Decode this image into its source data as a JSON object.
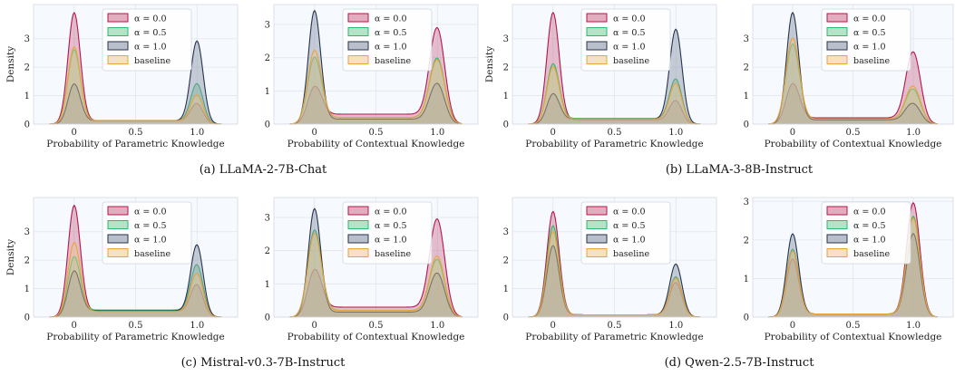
{
  "figure": {
    "captions": [
      "(a) LLaMA-2-7B-Chat",
      "(b) LLaMA-3-8B-Instruct",
      "(c) Mistral-v0.3-7B-Instruct",
      "(d) Qwen-2.5-7B-Instruct"
    ],
    "legend": [
      "α = 0.0",
      "α = 0.5",
      "α = 1.0",
      "baseline"
    ],
    "colors": {
      "series": [
        "#b5174b",
        "#2fb86b",
        "#27344d",
        "#e8a33d"
      ],
      "fills": [
        "#c96a8b",
        "#76cc99",
        "#7f8ca3",
        "#f1c98f"
      ],
      "panel_bg": "#f6f9fd",
      "grid": "#e1e6ee"
    }
  },
  "chart_data": [
    {
      "type": "area",
      "panel": "(a) LLaMA-2-7B-Chat",
      "xlabel": "Probability of Parametric Knowledge",
      "ylabel": "Density",
      "xlim": [
        -0.33,
        1.33
      ],
      "ylim": [
        0,
        4.2
      ],
      "xticks": [
        "0",
        "0.5",
        "1.0"
      ],
      "yticks": [
        "0",
        "1",
        "2",
        "3"
      ],
      "series": [
        {
          "name": "α = 0.0",
          "peaks": [
            {
              "x": 0,
              "h": 3.9,
              "w": 0.05
            },
            {
              "x": 1,
              "h": 0.7,
              "w": 0.05
            }
          ],
          "base": 0.12
        },
        {
          "name": "α = 0.5",
          "peaks": [
            {
              "x": 0,
              "h": 2.6,
              "w": 0.05
            },
            {
              "x": 1,
              "h": 1.4,
              "w": 0.05
            }
          ],
          "base": 0.12
        },
        {
          "name": "α = 1.0",
          "peaks": [
            {
              "x": 0,
              "h": 1.4,
              "w": 0.05
            },
            {
              "x": 1,
              "h": 2.9,
              "w": 0.05
            }
          ],
          "base": 0.12
        },
        {
          "name": "baseline",
          "peaks": [
            {
              "x": 0,
              "h": 2.7,
              "w": 0.05
            },
            {
              "x": 1,
              "h": 1.0,
              "w": 0.05
            }
          ],
          "base": 0.12
        }
      ]
    },
    {
      "type": "area",
      "panel": "(a) LLaMA-2-7B-Chat",
      "xlabel": "Probability of Contextual Knowledge",
      "ylabel": "",
      "xlim": [
        -0.33,
        1.33
      ],
      "ylim": [
        0,
        3.6
      ],
      "xticks": [
        "0",
        "0.5",
        "1.0"
      ],
      "yticks": [
        "0",
        "1",
        "2",
        "3"
      ],
      "series": [
        {
          "name": "α = 0.0",
          "peaks": [
            {
              "x": 0,
              "h": 1.1,
              "w": 0.055
            },
            {
              "x": 1,
              "h": 2.85,
              "w": 0.06
            }
          ],
          "base": 0.3
        },
        {
          "name": "α = 0.5",
          "peaks": [
            {
              "x": 0,
              "h": 2.0,
              "w": 0.055
            },
            {
              "x": 1,
              "h": 1.95,
              "w": 0.06
            }
          ],
          "base": 0.2
        },
        {
          "name": "α = 1.0",
          "peaks": [
            {
              "x": 0,
              "h": 3.4,
              "w": 0.05
            },
            {
              "x": 1,
              "h": 1.2,
              "w": 0.06
            }
          ],
          "base": 0.15
        },
        {
          "name": "baseline",
          "peaks": [
            {
              "x": 0,
              "h": 2.2,
              "w": 0.055
            },
            {
              "x": 1,
              "h": 1.9,
              "w": 0.06
            }
          ],
          "base": 0.2
        }
      ]
    },
    {
      "type": "area",
      "panel": "(b) LLaMA-3-8B-Instruct",
      "xlabel": "Probability of Parametric Knowledge",
      "ylabel": "Density",
      "xlim": [
        -0.33,
        1.33
      ],
      "ylim": [
        0,
        4.2
      ],
      "xticks": [
        "0",
        "0.5",
        "1.0"
      ],
      "yticks": [
        "0",
        "1",
        "2",
        "3"
      ],
      "series": [
        {
          "name": "α = 0.0",
          "peaks": [
            {
              "x": 0,
              "h": 3.9,
              "w": 0.05
            },
            {
              "x": 1,
              "h": 0.8,
              "w": 0.05
            }
          ],
          "base": 0.15
        },
        {
          "name": "α = 0.5",
          "peaks": [
            {
              "x": 0,
              "h": 2.1,
              "w": 0.05
            },
            {
              "x": 1,
              "h": 1.55,
              "w": 0.05
            }
          ],
          "base": 0.2
        },
        {
          "name": "α = 1.0",
          "peaks": [
            {
              "x": 0,
              "h": 1.05,
              "w": 0.05
            },
            {
              "x": 1,
              "h": 3.3,
              "w": 0.05
            }
          ],
          "base": 0.18
        },
        {
          "name": "baseline",
          "peaks": [
            {
              "x": 0,
              "h": 2.0,
              "w": 0.05
            },
            {
              "x": 1,
              "h": 1.4,
              "w": 0.05
            }
          ],
          "base": 0.18
        }
      ]
    },
    {
      "type": "area",
      "panel": "(b) LLaMA-3-8B-Instruct",
      "xlabel": "Probability of Contextual Knowledge",
      "ylabel": "",
      "xlim": [
        -0.33,
        1.33
      ],
      "ylim": [
        0,
        4.2
      ],
      "xticks": [
        "0",
        "0.5",
        "1.0"
      ],
      "yticks": [
        "0",
        "1",
        "2",
        "3"
      ],
      "series": [
        {
          "name": "α = 0.0",
          "peaks": [
            {
              "x": 0,
              "h": 1.4,
              "w": 0.055
            },
            {
              "x": 1,
              "h": 2.5,
              "w": 0.06
            }
          ],
          "base": 0.22
        },
        {
          "name": "α = 0.5",
          "peaks": [
            {
              "x": 0,
              "h": 2.8,
              "w": 0.055
            },
            {
              "x": 1,
              "h": 1.2,
              "w": 0.06
            }
          ],
          "base": 0.18
        },
        {
          "name": "α = 1.0",
          "peaks": [
            {
              "x": 0,
              "h": 3.9,
              "w": 0.05
            },
            {
              "x": 1,
              "h": 0.7,
              "w": 0.06
            }
          ],
          "base": 0.15
        },
        {
          "name": "baseline",
          "peaks": [
            {
              "x": 0,
              "h": 3.0,
              "w": 0.055
            },
            {
              "x": 1,
              "h": 1.3,
              "w": 0.06
            }
          ],
          "base": 0.18
        }
      ]
    },
    {
      "type": "area",
      "panel": "(c) Mistral-v0.3-7B-Instruct",
      "xlabel": "Probability of Parametric Knowledge",
      "ylabel": "Density",
      "xlim": [
        -0.33,
        1.33
      ],
      "ylim": [
        0,
        4.2
      ],
      "xticks": [
        "0",
        "0.5",
        "1.0"
      ],
      "yticks": [
        "0",
        "1",
        "2",
        "3"
      ],
      "series": [
        {
          "name": "α = 0.0",
          "peaks": [
            {
              "x": 0,
              "h": 3.9,
              "w": 0.05
            },
            {
              "x": 1,
              "h": 1.1,
              "w": 0.05
            }
          ],
          "base": 0.2
        },
        {
          "name": "α = 0.5",
          "peaks": [
            {
              "x": 0,
              "h": 2.1,
              "w": 0.05
            },
            {
              "x": 1,
              "h": 1.8,
              "w": 0.05
            }
          ],
          "base": 0.25
        },
        {
          "name": "α = 1.0",
          "peaks": [
            {
              "x": 0,
              "h": 1.6,
              "w": 0.05
            },
            {
              "x": 1,
              "h": 2.5,
              "w": 0.05
            }
          ],
          "base": 0.22
        },
        {
          "name": "baseline",
          "peaks": [
            {
              "x": 0,
              "h": 2.6,
              "w": 0.05
            },
            {
              "x": 1,
              "h": 1.5,
              "w": 0.05
            }
          ],
          "base": 0.2
        }
      ]
    },
    {
      "type": "area",
      "panel": "(c) Mistral-v0.3-7B-Instruct",
      "xlabel": "Probability of Contextual Knowledge",
      "ylabel": "",
      "xlim": [
        -0.33,
        1.33
      ],
      "ylim": [
        0,
        3.6
      ],
      "xticks": [
        "0",
        "0.5",
        "1.0"
      ],
      "yticks": [
        "0",
        "1",
        "2",
        "3"
      ],
      "series": [
        {
          "name": "α = 0.0",
          "peaks": [
            {
              "x": 0,
              "h": 1.4,
              "w": 0.055
            },
            {
              "x": 1,
              "h": 2.9,
              "w": 0.06
            }
          ],
          "base": 0.3
        },
        {
          "name": "α = 0.5",
          "peaks": [
            {
              "x": 0,
              "h": 2.6,
              "w": 0.055
            },
            {
              "x": 1,
              "h": 1.7,
              "w": 0.06
            }
          ],
          "base": 0.2
        },
        {
          "name": "α = 1.0",
          "peaks": [
            {
              "x": 0,
              "h": 3.25,
              "w": 0.05
            },
            {
              "x": 1,
              "h": 1.3,
              "w": 0.06
            }
          ],
          "base": 0.15
        },
        {
          "name": "baseline",
          "peaks": [
            {
              "x": 0,
              "h": 2.5,
              "w": 0.055
            },
            {
              "x": 1,
              "h": 1.8,
              "w": 0.06
            }
          ],
          "base": 0.2
        }
      ]
    },
    {
      "type": "area",
      "panel": "(d) Qwen-2.5-7B-Instruct",
      "xlabel": "Probability of Parametric Knowledge",
      "ylabel": "",
      "xlim": [
        -0.33,
        1.33
      ],
      "ylim": [
        0,
        4.2
      ],
      "xticks": [
        "0",
        "0.5",
        "1.0"
      ],
      "yticks": [
        "0",
        "1",
        "2",
        "3"
      ],
      "series": [
        {
          "name": "α = 0.0",
          "peaks": [
            {
              "x": 0,
              "h": 3.7,
              "w": 0.05
            },
            {
              "x": 1,
              "h": 1.2,
              "w": 0.05
            }
          ],
          "base": 0.08
        },
        {
          "name": "α = 0.5",
          "peaks": [
            {
              "x": 0,
              "h": 3.2,
              "w": 0.05
            },
            {
              "x": 1,
              "h": 1.4,
              "w": 0.05
            }
          ],
          "base": 0.08
        },
        {
          "name": "α = 1.0",
          "peaks": [
            {
              "x": 0,
              "h": 2.5,
              "w": 0.05
            },
            {
              "x": 1,
              "h": 1.85,
              "w": 0.05
            }
          ],
          "base": 0.08
        },
        {
          "name": "baseline",
          "peaks": [
            {
              "x": 0,
              "h": 3.0,
              "w": 0.05
            },
            {
              "x": 1,
              "h": 1.35,
              "w": 0.05
            }
          ],
          "base": 0.08
        }
      ]
    },
    {
      "type": "area",
      "panel": "(d) Qwen-2.5-7B-Instruct",
      "xlabel": "Probability of Contextual Knowledge",
      "ylabel": "",
      "xlim": [
        -0.33,
        1.33
      ],
      "ylim": [
        0,
        3.1
      ],
      "xticks": [
        "0",
        "0.5",
        "1.0"
      ],
      "yticks": [
        "0",
        "1",
        "2",
        "3"
      ],
      "series": [
        {
          "name": "α = 0.0",
          "peaks": [
            {
              "x": 0,
              "h": 1.5,
              "w": 0.05
            },
            {
              "x": 1,
              "h": 2.95,
              "w": 0.055
            }
          ],
          "base": 0.08
        },
        {
          "name": "α = 0.5",
          "peaks": [
            {
              "x": 0,
              "h": 1.75,
              "w": 0.05
            },
            {
              "x": 1,
              "h": 2.6,
              "w": 0.055
            }
          ],
          "base": 0.08
        },
        {
          "name": "α = 1.0",
          "peaks": [
            {
              "x": 0,
              "h": 2.15,
              "w": 0.05
            },
            {
              "x": 1,
              "h": 2.15,
              "w": 0.055
            }
          ],
          "base": 0.08
        },
        {
          "name": "baseline",
          "peaks": [
            {
              "x": 0,
              "h": 1.7,
              "w": 0.05
            },
            {
              "x": 1,
              "h": 2.55,
              "w": 0.055
            }
          ],
          "base": 0.08
        }
      ]
    }
  ]
}
